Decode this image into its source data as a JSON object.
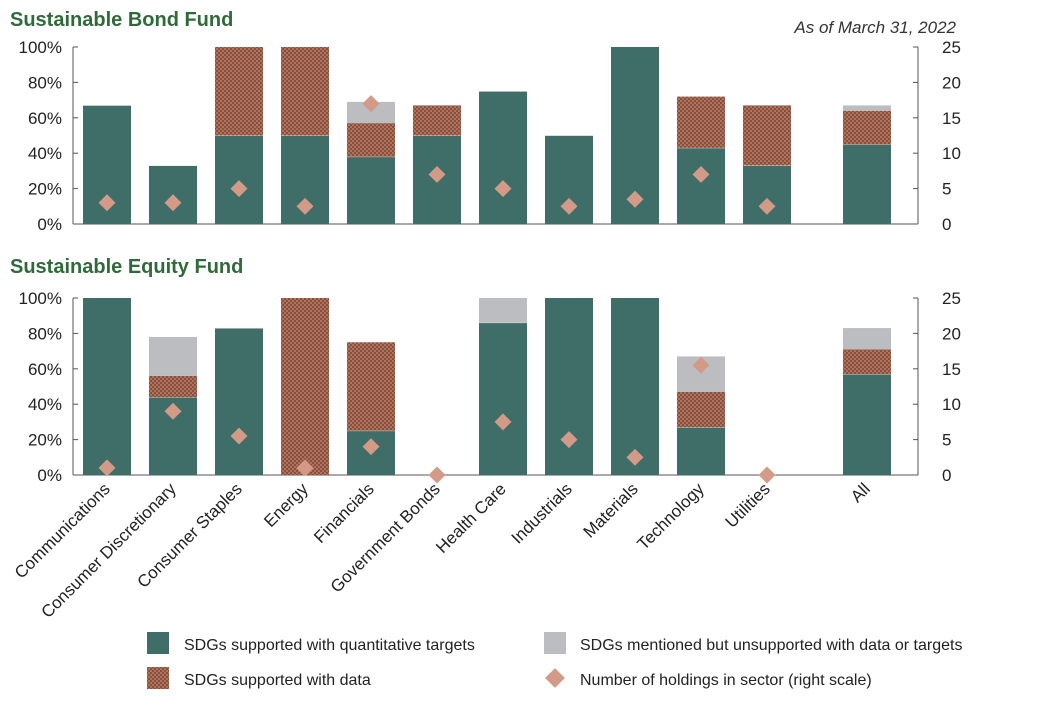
{
  "as_of": "As of March 31, 2022",
  "colors": {
    "quant": "#3f6e69",
    "data": "#8c4f3b",
    "data_dot": "#d7a592",
    "mentioned": "#bcbdc0",
    "diamond": "#d29a87",
    "title": "#2f6b3a"
  },
  "legend": {
    "quant": "SDGs supported with quantitative targets",
    "data": "SDGs supported with data",
    "mentioned": "SDGs mentioned but unsupported with data or targets",
    "holdings": "Number of holdings in sector (right scale)"
  },
  "chart_data": [
    {
      "type": "bar",
      "stacked": true,
      "title": "Sustainable Bond Fund",
      "categories": [
        "Communications",
        "Consumer Discretionary",
        "Consumer Staples",
        "Energy",
        "Financials",
        "Government Bonds",
        "Health Care",
        "Industrials",
        "Materials",
        "Technology",
        "Utilities",
        "All"
      ],
      "ylim": [
        0,
        100
      ],
      "y_ticks": [
        "0%",
        "20%",
        "40%",
        "60%",
        "80%",
        "100%"
      ],
      "y2lim": [
        0,
        25
      ],
      "y2_ticks": [
        "0",
        "5",
        "10",
        "15",
        "20",
        "25"
      ],
      "series": [
        {
          "name": "SDGs supported with quantitative targets",
          "key": "quant",
          "values": [
            67,
            33,
            50,
            50,
            38,
            50,
            75,
            50,
            100,
            43,
            33,
            45
          ]
        },
        {
          "name": "SDGs supported with data",
          "key": "data",
          "values": [
            0,
            0,
            50,
            50,
            19,
            17,
            0,
            0,
            0,
            29,
            34,
            19
          ]
        },
        {
          "name": "SDGs mentioned but unsupported with data or targets",
          "key": "mentioned",
          "values": [
            0,
            0,
            0,
            0,
            12,
            0,
            0,
            0,
            0,
            0,
            0,
            3
          ]
        }
      ],
      "holdings": [
        3,
        3,
        5,
        2.5,
        17,
        7,
        5,
        2.5,
        3.5,
        7,
        2.5,
        null
      ]
    },
    {
      "type": "bar",
      "stacked": true,
      "title": "Sustainable Equity Fund",
      "categories": [
        "Communications",
        "Consumer Discretionary",
        "Consumer Staples",
        "Energy",
        "Financials",
        "Government Bonds",
        "Health Care",
        "Industrials",
        "Materials",
        "Technology",
        "Utilities",
        "All"
      ],
      "ylim": [
        0,
        100
      ],
      "y_ticks": [
        "0%",
        "20%",
        "40%",
        "60%",
        "80%",
        "100%"
      ],
      "y2lim": [
        0,
        25
      ],
      "y2_ticks": [
        "0",
        "5",
        "10",
        "15",
        "20",
        "25"
      ],
      "series": [
        {
          "name": "SDGs supported with quantitative targets",
          "key": "quant",
          "values": [
            100,
            44,
            83,
            0,
            25,
            0,
            86,
            100,
            100,
            27,
            0,
            57
          ]
        },
        {
          "name": "SDGs supported with data",
          "key": "data",
          "values": [
            0,
            12,
            0,
            100,
            50,
            0,
            0,
            0,
            0,
            20,
            0,
            14
          ]
        },
        {
          "name": "SDGs mentioned but unsupported with data or targets",
          "key": "mentioned",
          "values": [
            0,
            22,
            0,
            0,
            0,
            0,
            14,
            0,
            0,
            20,
            0,
            12
          ]
        }
      ],
      "holdings": [
        1,
        9,
        5.5,
        1,
        4,
        0,
        7.5,
        5,
        2.5,
        15.5,
        0,
        null
      ]
    }
  ]
}
